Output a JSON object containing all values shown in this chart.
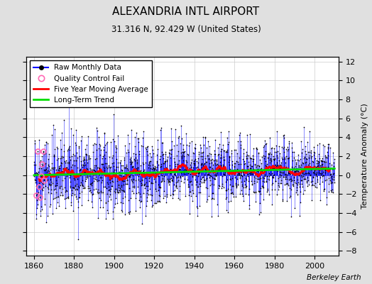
{
  "title": "ALEXANDRIA INTL AIRPORT",
  "subtitle": "31.316 N, 92.429 W (United States)",
  "ylabel": "Temperature Anomaly (°C)",
  "watermark": "Berkeley Earth",
  "xlim": [
    1856,
    2012
  ],
  "ylim": [
    -8.5,
    12.5
  ],
  "yticks": [
    -8,
    -6,
    -4,
    -2,
    0,
    2,
    4,
    6,
    8,
    10,
    12
  ],
  "xticks": [
    1860,
    1880,
    1900,
    1920,
    1940,
    1960,
    1980,
    2000
  ],
  "start_year": 1860,
  "end_year": 2010,
  "seed": 42,
  "bg_color": "#e0e0e0",
  "plot_bg_color": "#ffffff",
  "line_color_raw": "#0000ff",
  "dot_color_raw": "#000000",
  "line_color_ma": "#ff0000",
  "line_color_trend": "#00dd00",
  "qc_color": "#ff69b4",
  "legend_fontsize": 7.5,
  "title_fontsize": 11,
  "subtitle_fontsize": 8.5
}
